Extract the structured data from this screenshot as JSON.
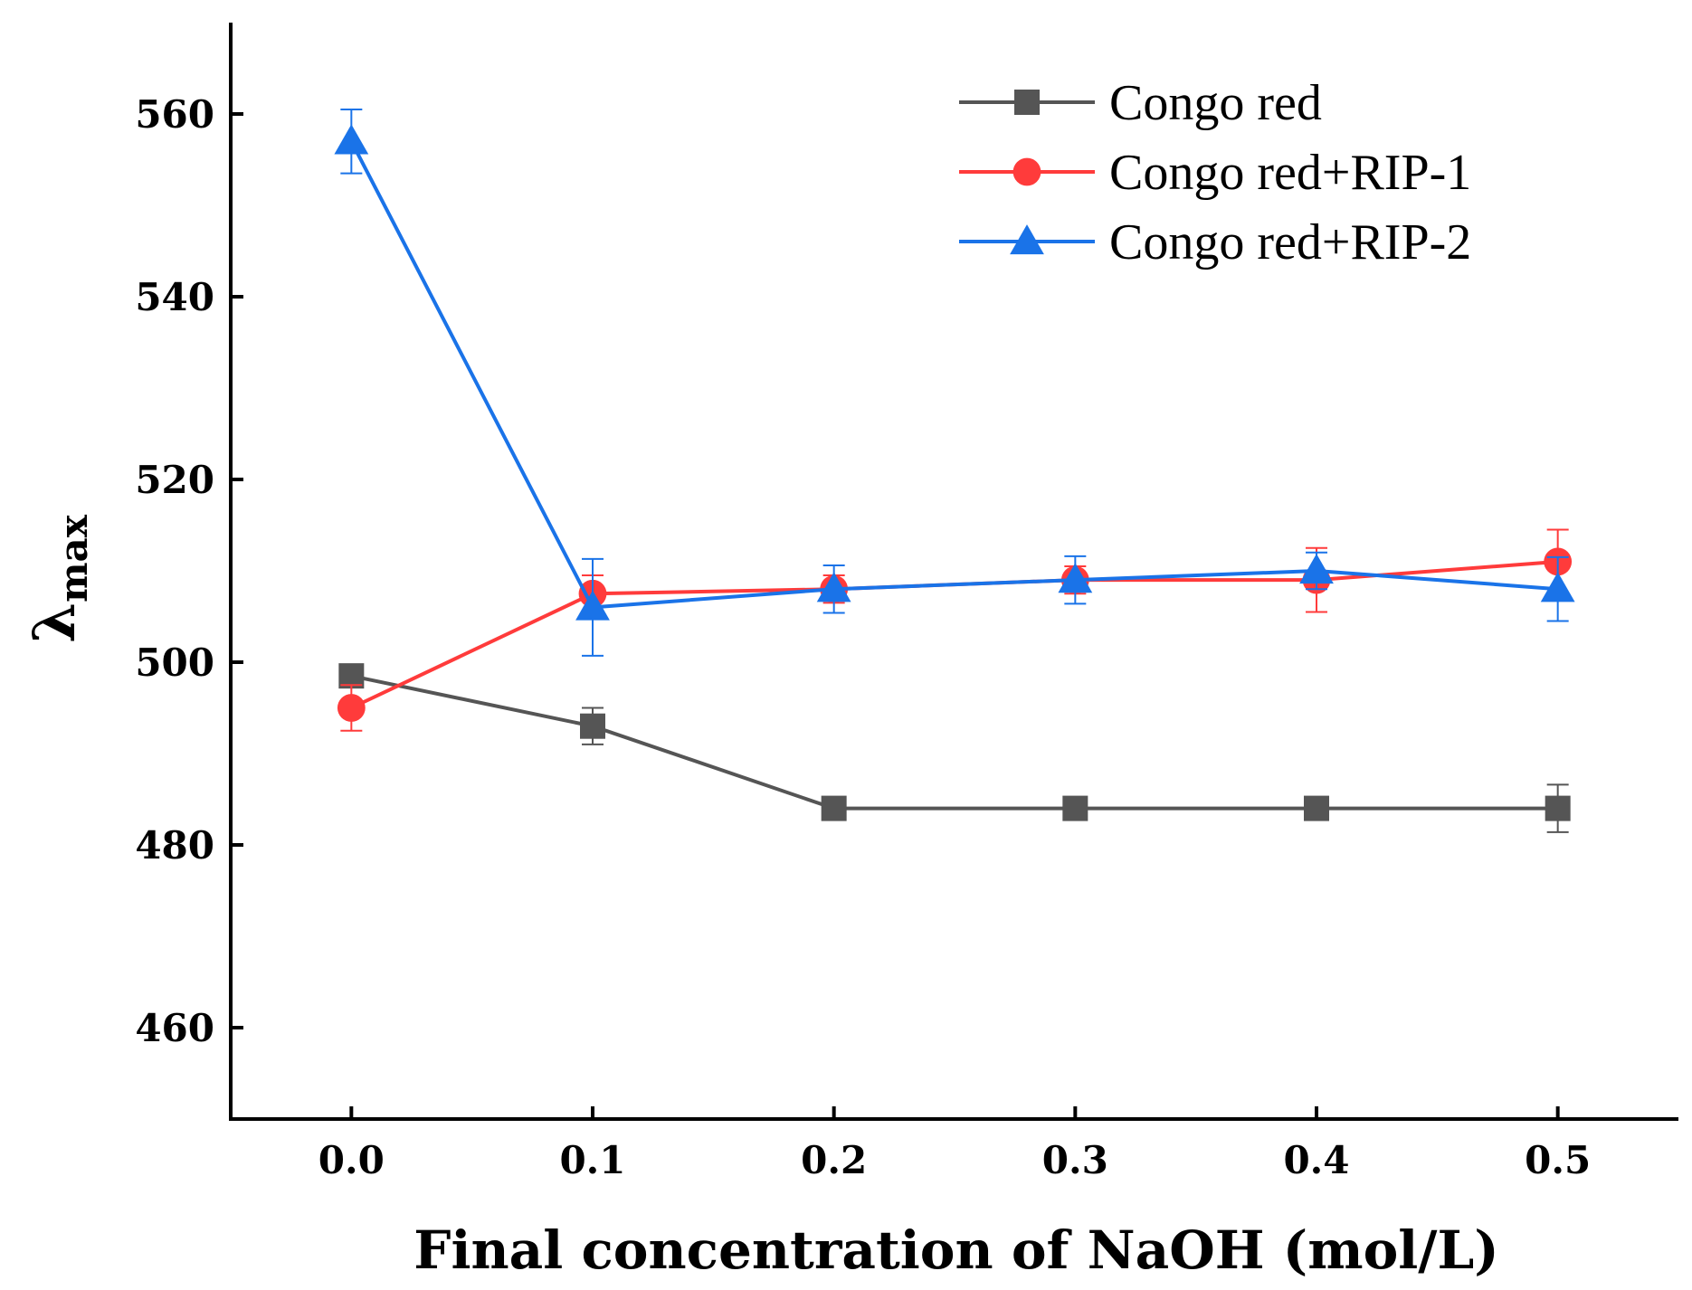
{
  "chart_data": {
    "type": "line",
    "title": "",
    "xlabel": "Final concentration of NaOH (mol/L)",
    "ylabel": {
      "main": "λ",
      "sub": "max"
    },
    "x": [
      0.0,
      0.1,
      0.2,
      0.3,
      0.4,
      0.5
    ],
    "x_tick_labels": [
      "0.0",
      "0.1",
      "0.2",
      "0.3",
      "0.4",
      "0.5"
    ],
    "y_ticks": [
      460,
      480,
      500,
      520,
      540,
      560
    ],
    "y_tick_labels": [
      "460",
      "480",
      "500",
      "520",
      "540",
      "560"
    ],
    "xlim": [
      -0.05,
      0.55
    ],
    "ylim": [
      450,
      570
    ],
    "legend_position": "top-right",
    "series": [
      {
        "name": "Congo red",
        "color": "#555555",
        "marker": "square",
        "values": [
          498.5,
          493.0,
          484.0,
          484.0,
          484.0,
          484.0
        ],
        "errors": [
          0.8,
          2.0,
          0.3,
          0.3,
          0.3,
          2.6
        ]
      },
      {
        "name": "Congo red+RIP-1",
        "color": "#ff3b3b",
        "marker": "circle",
        "values": [
          495.0,
          507.5,
          508.0,
          509.0,
          509.0,
          511.0
        ],
        "errors": [
          2.5,
          2.0,
          1.5,
          1.5,
          3.5,
          3.5
        ]
      },
      {
        "name": "Congo red+RIP-2",
        "color": "#1a73e8",
        "marker": "triangle",
        "values": [
          557.0,
          506.0,
          508.0,
          509.0,
          510.0,
          508.0
        ],
        "errors": [
          3.5,
          5.3,
          2.6,
          2.6,
          2.0,
          3.5
        ]
      }
    ]
  }
}
